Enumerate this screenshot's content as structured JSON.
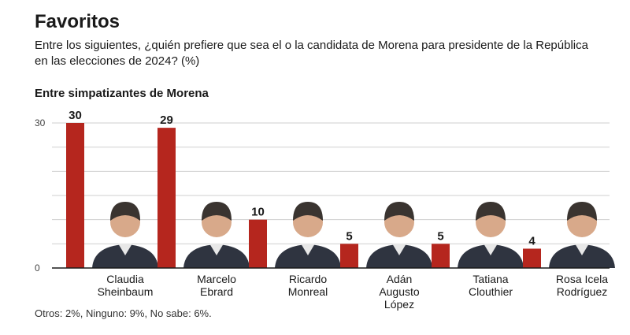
{
  "header": {
    "title": "Favoritos",
    "subtitle": "Entre los siguientes, ¿quién prefiere que sea el o la candidata de Morena para presidente de la República en las elecciones de 2024? (%)",
    "group_label": "Entre simpatizantes de Morena"
  },
  "footnote": "Otros: 2%, Ninguno: 9%, No sabe: 6%.",
  "colors": {
    "bar": "#b5261e",
    "grid": "#cfcfcf",
    "axis": "#1a1a1a"
  },
  "chart_data": {
    "type": "bar",
    "title": "",
    "xlabel": "",
    "ylabel": "",
    "ylim": [
      0,
      30
    ],
    "yticks": [
      0,
      30
    ],
    "grid": true,
    "categories": [
      "Claudia Sheinbaum",
      "Marcelo Ebrard",
      "Ricardo Monreal",
      "Adán Augusto López",
      "Tatiana Clouthier",
      "Rosa Icela Rodríguez"
    ],
    "category_lines": [
      [
        "Claudia",
        "Sheinbaum"
      ],
      [
        "Marcelo",
        "Ebrard"
      ],
      [
        "Ricardo",
        "Monreal"
      ],
      [
        "Adán",
        "Augusto",
        "López"
      ],
      [
        "Tatiana",
        "Clouthier"
      ],
      [
        "Rosa Icela",
        "Rodríguez"
      ]
    ],
    "values": [
      30,
      29,
      10,
      5,
      5,
      4
    ],
    "data_labels": [
      "30",
      "29",
      "10",
      "5",
      "5",
      "4"
    ],
    "tick_labels": [
      "0",
      "30"
    ]
  }
}
